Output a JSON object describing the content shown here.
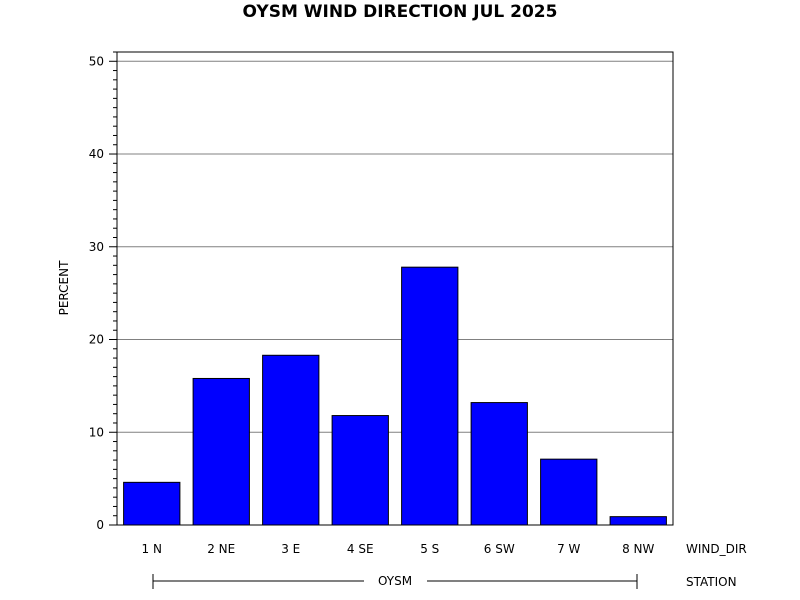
{
  "chart_data": {
    "type": "bar",
    "title": "OYSM WIND DIRECTION JUL 2025",
    "ylabel": "PERCENT",
    "xlabel": "WIND_DIR",
    "group_label": "STATION",
    "group_value": "OYSM",
    "categories": [
      "1 N",
      "2 NE",
      "3 E",
      "4 SE",
      "5 S",
      "6 SW",
      "7 W",
      "8 NW"
    ],
    "values": [
      4.6,
      15.8,
      18.3,
      11.8,
      27.8,
      13.2,
      7.1,
      0.9
    ],
    "ylim": [
      0,
      51
    ],
    "yticks": [
      0,
      10,
      20,
      30,
      40,
      50
    ],
    "grid": true,
    "bar_color": "#0000ff"
  }
}
